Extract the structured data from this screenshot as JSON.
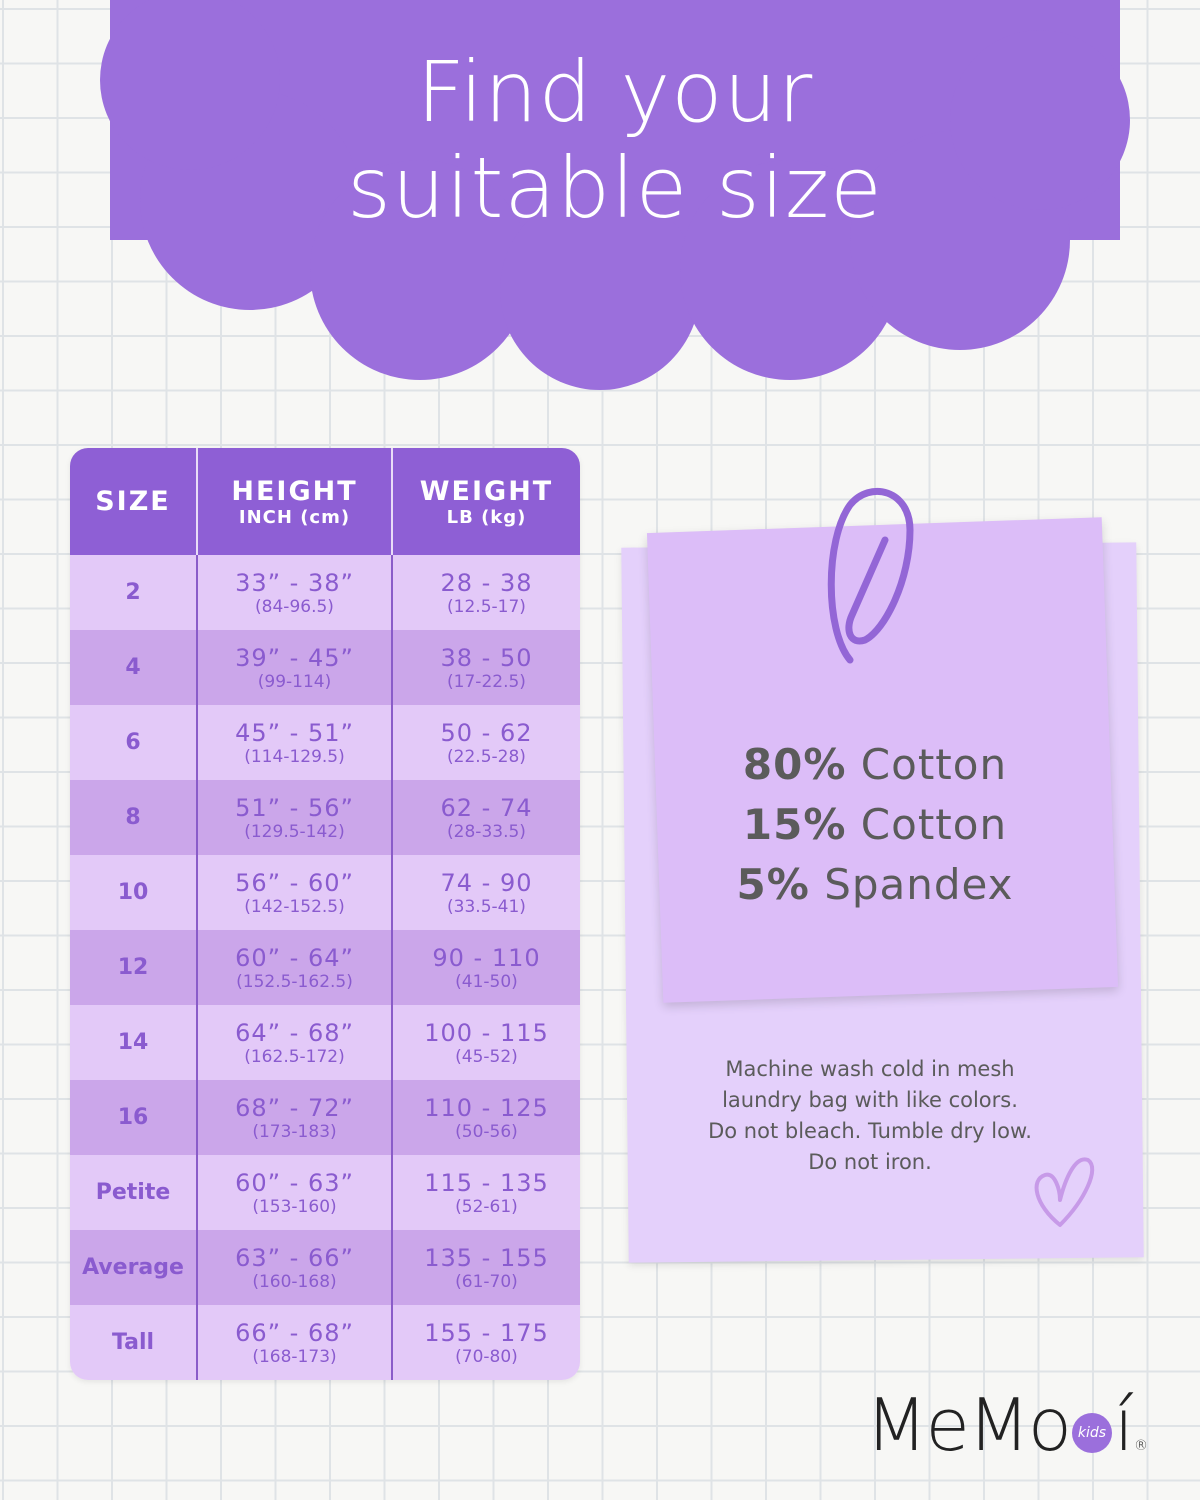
{
  "title": {
    "line1": "Find your",
    "line2": "suitable size"
  },
  "colors": {
    "cloud": "#9b6fdc",
    "header": "#8e5fd5",
    "row_light": "#e3c9f8",
    "row_dark": "#cba6ea",
    "note": "#dcbdf8"
  },
  "table": {
    "headers": [
      {
        "main": "SIZE",
        "sub": ""
      },
      {
        "main": "HEIGHT",
        "sub": "INCH (cm)"
      },
      {
        "main": "WEIGHT",
        "sub": "LB (kg)"
      }
    ],
    "rows": [
      {
        "size": "2",
        "height": "33” - 38”",
        "height_cm": "(84-96.5)",
        "weight": "28 - 38",
        "weight_kg": "(12.5-17)"
      },
      {
        "size": "4",
        "height": "39” - 45”",
        "height_cm": "(99-114)",
        "weight": "38 - 50",
        "weight_kg": "(17-22.5)"
      },
      {
        "size": "6",
        "height": "45” - 51”",
        "height_cm": "(114-129.5)",
        "weight": "50 - 62",
        "weight_kg": "(22.5-28)"
      },
      {
        "size": "8",
        "height": "51” - 56”",
        "height_cm": "(129.5-142)",
        "weight": "62 - 74",
        "weight_kg": "(28-33.5)"
      },
      {
        "size": "10",
        "height": "56” - 60”",
        "height_cm": "(142-152.5)",
        "weight": "74 - 90",
        "weight_kg": "(33.5-41)"
      },
      {
        "size": "12",
        "height": "60” - 64”",
        "height_cm": "(152.5-162.5)",
        "weight": "90 - 110",
        "weight_kg": "(41-50)"
      },
      {
        "size": "14",
        "height": "64” - 68”",
        "height_cm": "(162.5-172)",
        "weight": "100 - 115",
        "weight_kg": "(45-52)"
      },
      {
        "size": "16",
        "height": "68” - 72”",
        "height_cm": "(173-183)",
        "weight": "110 - 125",
        "weight_kg": "(50-56)"
      },
      {
        "size": "Petite",
        "height": "60” - 63”",
        "height_cm": "(153-160)",
        "weight": "115 - 135",
        "weight_kg": "(52-61)"
      },
      {
        "size": "Average",
        "height": "63” - 66”",
        "height_cm": "(160-168)",
        "weight": "135 - 155",
        "weight_kg": "(61-70)"
      },
      {
        "size": "Tall",
        "height": "66” - 68”",
        "height_cm": "(168-173)",
        "weight": "155 - 175",
        "weight_kg": "(70-80)"
      }
    ]
  },
  "fabric": [
    {
      "pct": "80%",
      "name": "Cotton"
    },
    {
      "pct": "15%",
      "name": "Cotton"
    },
    {
      "pct": "5%",
      "name": "Spandex"
    }
  ],
  "care": [
    "Machine wash cold in mesh",
    "laundry bag with like colors.",
    "Do not bleach. Tumble dry low.",
    "Do not iron."
  ],
  "logo": {
    "text": "MeMo",
    "badge": "kids",
    "tail": "í",
    "mark": "®"
  },
  "icons": [
    "paperclip-icon",
    "heart-doodle-icon"
  ]
}
